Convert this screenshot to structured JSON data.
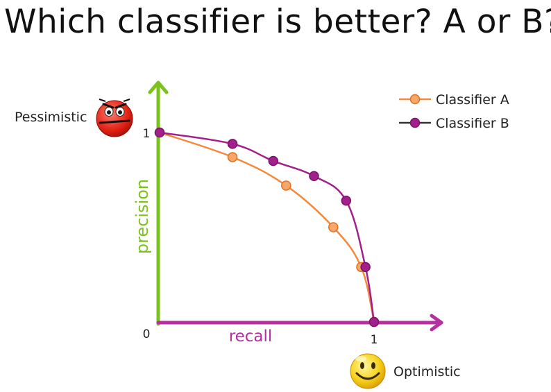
{
  "title": "Which classifier is better? A or B?",
  "annotations": {
    "pessimistic": "Pessimistic",
    "optimistic": "Optimistic"
  },
  "icons": {
    "pessimistic": "angry-face-icon",
    "optimistic": "smiley-face-icon"
  },
  "colors": {
    "classifier_a": "#f5883a",
    "classifier_b": "#a3208c",
    "y_axis": "#7cc21c",
    "x_axis": "#b52fa0"
  },
  "chart_data": {
    "type": "line",
    "title": "Which classifier is better? A or B?",
    "xlabel": "recall",
    "ylabel": "precision",
    "xlim": [
      0,
      1
    ],
    "ylim": [
      0,
      1
    ],
    "x_ticks": [
      "0",
      "1"
    ],
    "y_ticks": [
      "1"
    ],
    "legend_position": "top-right",
    "series": [
      {
        "name": "Classifier A",
        "color": "#f5883a",
        "x": [
          0.0,
          0.34,
          0.59,
          0.81,
          0.94,
          1.0
        ],
        "y": [
          1.0,
          0.87,
          0.72,
          0.5,
          0.29,
          0.0
        ]
      },
      {
        "name": "Classifier B",
        "color": "#a3208c",
        "x": [
          0.0,
          0.34,
          0.53,
          0.72,
          0.87,
          0.96,
          1.0
        ],
        "y": [
          1.0,
          0.94,
          0.85,
          0.77,
          0.64,
          0.29,
          0.0
        ]
      }
    ]
  }
}
